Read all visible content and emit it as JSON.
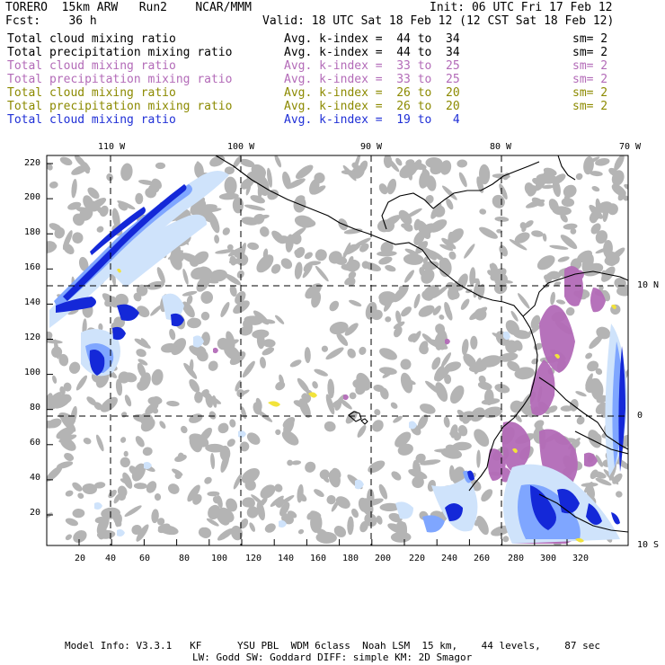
{
  "header": {
    "line1_left": "TORERO  15km ARW   Run2    NCAR/MMM",
    "line1_right": "Init: 06 UTC Fri 17 Feb 12",
    "line2_left": "Fcst:    36 h",
    "line2_right": "Valid: 18 UTC Sat 18 Feb 12 (12 CST Sat 18 Feb 12)"
  },
  "legend": [
    {
      "field": "Total cloud mixing ratio",
      "kindex": "Avg. k-index =  44 to  34",
      "sm": "sm= 2",
      "color": "#000000"
    },
    {
      "field": "Total precipitation mixing ratio",
      "kindex": "Avg. k-index =  44 to  34",
      "sm": "sm= 2",
      "color": "#000000"
    },
    {
      "field": "Total cloud mixing ratio",
      "kindex": "Avg. k-index =  33 to  25",
      "sm": "sm= 2",
      "color": "#b36bb8"
    },
    {
      "field": "Total precipitation mixing ratio",
      "kindex": "Avg. k-index =  33 to  25",
      "sm": "sm= 2",
      "color": "#b36bb8"
    },
    {
      "field": "Total cloud mixing ratio",
      "kindex": "Avg. k-index =  26 to  20",
      "sm": "sm= 2",
      "color": "#8c8a00"
    },
    {
      "field": "Total precipitation mixing ratio",
      "kindex": "Avg. k-index =  26 to  20",
      "sm": "sm= 2",
      "color": "#8c8a00"
    },
    {
      "field": "Total cloud mixing ratio",
      "kindex": "Avg. k-index =  19 to   4",
      "sm": "",
      "color": "#1f2fd6"
    }
  ],
  "map": {
    "top_labels": [
      "110 W",
      "100 W",
      "90 W",
      "80 W",
      "70 W"
    ],
    "right_labels": [
      "10 N",
      "0",
      "10 S"
    ],
    "y_ticks": [
      "220",
      "200",
      "180",
      "160",
      "140",
      "120",
      "100",
      "80",
      "60",
      "40",
      "20"
    ],
    "x_ticks": [
      "20",
      "40",
      "60",
      "80",
      "100",
      "120",
      "140",
      "160",
      "180",
      "200",
      "220",
      "240",
      "260",
      "280",
      "300",
      "320"
    ],
    "colors": {
      "gray_cloud": "#b4b4b4",
      "purple": "#b36bb8",
      "yellow": "#f2e33a",
      "light_blue": "#cfe3fb",
      "mid_blue": "#7fa6ff",
      "dark_blue": "#1428d8",
      "coast": "#000000"
    }
  },
  "footer": {
    "line1": "Model Info: V3.3.1   KF      YSU PBL  WDM 6class  Noah LSM  15 km,    44 levels,    87 sec",
    "line2": "LW: Godd SW: Goddard DIFF: simple KM: 2D Smagor"
  }
}
